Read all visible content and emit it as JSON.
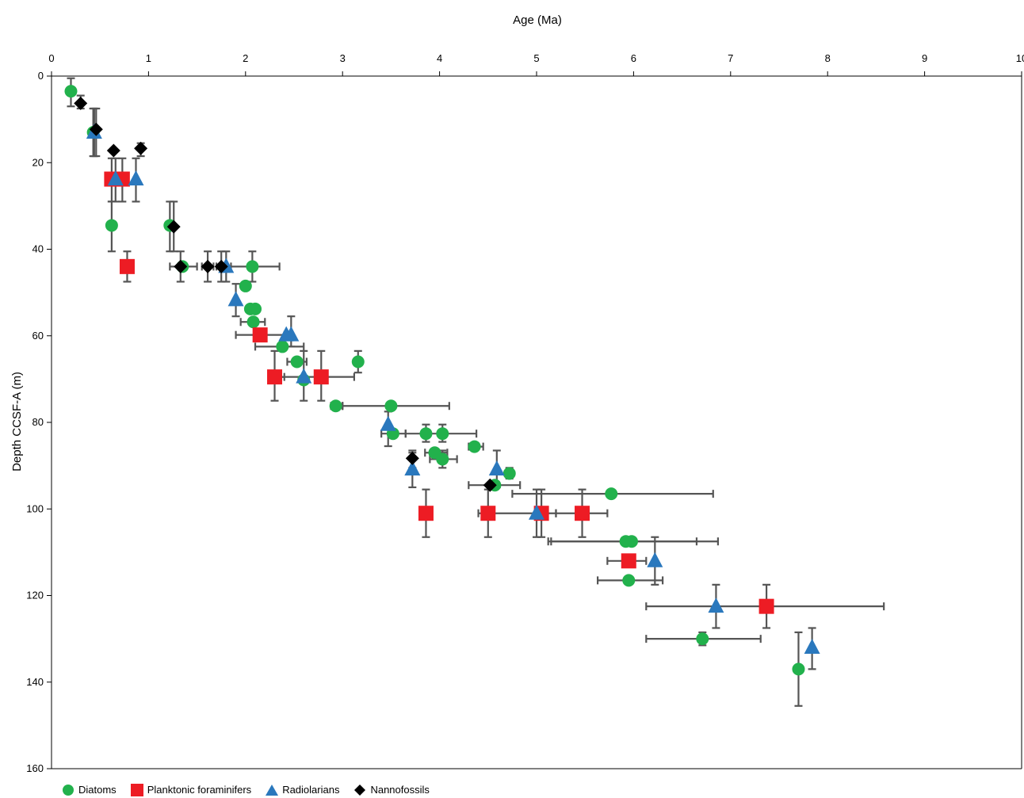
{
  "chart_data": {
    "type": "scatter",
    "xlabel": "Age (Ma)",
    "ylabel": "Depth CCSF-A (m)",
    "xlim": [
      0,
      10
    ],
    "ylim": [
      0,
      160
    ],
    "y_inverted": true,
    "x_axis_position": "top",
    "x_ticks": [
      "0",
      "1",
      "2",
      "3",
      "4",
      "5",
      "6",
      "7",
      "8",
      "9",
      "10"
    ],
    "y_ticks": [
      "0",
      "20",
      "40",
      "60",
      "80",
      "100",
      "120",
      "140",
      "160"
    ],
    "legend_position": "bottom-left",
    "grid": false,
    "series": [
      {
        "name": "Diatoms",
        "marker": "circle",
        "color": "#22b14c",
        "points": [
          {
            "x": 0.2,
            "y": 3.5,
            "ylo": 0.5,
            "yhi": 7.0
          },
          {
            "x": 0.43,
            "y": 13.0,
            "ylo": 7.5,
            "yhi": 18.5
          },
          {
            "x": 0.62,
            "y": 34.5,
            "ylo": 29.0,
            "yhi": 40.5
          },
          {
            "x": 1.22,
            "y": 34.5,
            "ylo": 29.0,
            "yhi": 40.5
          },
          {
            "x": 1.35,
            "y": 44.0,
            "xlo": 1.22,
            "xhi": 1.5
          },
          {
            "x": 2.07,
            "y": 44.0,
            "xlo": 1.85,
            "xhi": 2.35,
            "ylo": 40.5,
            "yhi": 47.5
          },
          {
            "x": 2.0,
            "y": 48.5
          },
          {
            "x": 2.05,
            "y": 53.8
          },
          {
            "x": 2.1,
            "y": 53.8
          },
          {
            "x": 2.08,
            "y": 56.8,
            "xlo": 1.95,
            "xhi": 2.2
          },
          {
            "x": 2.38,
            "y": 62.5,
            "xlo": 2.1,
            "xhi": 2.6
          },
          {
            "x": 2.53,
            "y": 66.0,
            "xlo": 2.43,
            "xhi": 2.63
          },
          {
            "x": 3.16,
            "y": 66.0,
            "ylo": 63.5,
            "yhi": 68.5
          },
          {
            "x": 2.6,
            "y": 70.2
          },
          {
            "x": 2.93,
            "y": 76.2,
            "xlo": 2.88,
            "xhi": 3.0
          },
          {
            "x": 3.5,
            "y": 76.2,
            "xlo": 3.0,
            "xhi": 4.1
          },
          {
            "x": 3.52,
            "y": 82.6,
            "xlo": 3.4,
            "xhi": 3.65
          },
          {
            "x": 3.86,
            "y": 82.6,
            "ylo": 80.5,
            "yhi": 84.5
          },
          {
            "x": 4.03,
            "y": 82.6,
            "xlo": 3.65,
            "xhi": 4.38,
            "ylo": 80.5,
            "yhi": 84.5
          },
          {
            "x": 4.36,
            "y": 85.6,
            "xlo": 4.3,
            "xhi": 4.45
          },
          {
            "x": 3.95,
            "y": 87.0,
            "xlo": 3.85,
            "xhi": 4.08
          },
          {
            "x": 4.03,
            "y": 88.5,
            "xlo": 3.9,
            "xhi": 4.18,
            "ylo": 86.5,
            "yhi": 90.5
          },
          {
            "x": 4.72,
            "y": 91.8,
            "ylo": 90.5,
            "yhi": 93.0
          },
          {
            "x": 4.57,
            "y": 94.5,
            "xlo": 4.3,
            "xhi": 4.83
          },
          {
            "x": 5.77,
            "y": 96.5,
            "xlo": 4.75,
            "xhi": 6.82
          },
          {
            "x": 5.92,
            "y": 107.5,
            "xlo": 5.15,
            "xhi": 6.65
          },
          {
            "x": 5.98,
            "y": 107.5,
            "xlo": 5.12,
            "xhi": 6.87
          },
          {
            "x": 5.95,
            "y": 116.5,
            "xlo": 5.63,
            "xhi": 6.3
          },
          {
            "x": 6.71,
            "y": 130.0,
            "xlo": 6.13,
            "xhi": 7.31,
            "ylo": 128.5,
            "yhi": 131.5
          },
          {
            "x": 7.7,
            "y": 137.0,
            "ylo": 128.5,
            "yhi": 145.5
          }
        ]
      },
      {
        "name": "Planktonic foraminifers",
        "marker": "square",
        "color": "#ed1c24",
        "points": [
          {
            "x": 0.62,
            "y": 23.8,
            "ylo": 19.0,
            "yhi": 29.0
          },
          {
            "x": 0.73,
            "y": 23.8,
            "ylo": 19.0,
            "yhi": 29.0
          },
          {
            "x": 0.78,
            "y": 44.0,
            "ylo": 40.5,
            "yhi": 47.5
          },
          {
            "x": 2.15,
            "y": 59.8,
            "xlo": 1.9,
            "xhi": 2.4
          },
          {
            "x": 2.3,
            "y": 69.5,
            "xlo": 2.3,
            "xhi": 2.4,
            "ylo": 63.5,
            "yhi": 75.0
          },
          {
            "x": 2.78,
            "y": 69.5,
            "xlo": 2.35,
            "xhi": 3.12,
            "ylo": 63.5,
            "yhi": 75.0
          },
          {
            "x": 3.86,
            "y": 101.0,
            "ylo": 95.5,
            "yhi": 106.5
          },
          {
            "x": 4.5,
            "y": 101.0,
            "xlo": 4.4,
            "xhi": 5.0,
            "ylo": 95.5,
            "yhi": 106.5
          },
          {
            "x": 5.05,
            "y": 101.0,
            "xlo": 5.0,
            "xhi": 5.2,
            "ylo": 95.5,
            "yhi": 106.5
          },
          {
            "x": 5.47,
            "y": 101.0,
            "xlo": 5.2,
            "xhi": 5.73,
            "ylo": 95.5,
            "yhi": 106.5
          },
          {
            "x": 5.95,
            "y": 112.0,
            "xlo": 5.73,
            "xhi": 6.13
          },
          {
            "x": 7.37,
            "y": 122.5,
            "xlo": 6.13,
            "xhi": 8.58,
            "ylo": 117.5,
            "yhi": 127.5
          }
        ]
      },
      {
        "name": "Radiolarians",
        "marker": "triangle",
        "color": "#2a78bd",
        "points": [
          {
            "x": 0.44,
            "y": 13.0,
            "ylo": 7.5,
            "yhi": 18.5
          },
          {
            "x": 0.66,
            "y": 23.8,
            "ylo": 19.0,
            "yhi": 29.0
          },
          {
            "x": 0.87,
            "y": 23.8,
            "ylo": 19.0,
            "yhi": 29.0
          },
          {
            "x": 1.8,
            "y": 44.0,
            "ylo": 40.5,
            "yhi": 47.5
          },
          {
            "x": 1.9,
            "y": 51.7,
            "ylo": 48.0,
            "yhi": 55.5
          },
          {
            "x": 2.42,
            "y": 59.8
          },
          {
            "x": 2.47,
            "y": 59.8,
            "ylo": 55.5,
            "yhi": 62.5
          },
          {
            "x": 2.6,
            "y": 69.5,
            "ylo": 63.5,
            "yhi": 75.0
          },
          {
            "x": 3.47,
            "y": 80.5,
            "ylo": 77.5,
            "yhi": 85.5
          },
          {
            "x": 3.72,
            "y": 90.8,
            "ylo": 87.0,
            "yhi": 95.0
          },
          {
            "x": 4.59,
            "y": 90.8,
            "ylo": 86.5,
            "yhi": 95.0
          },
          {
            "x": 5.0,
            "y": 101.0,
            "ylo": 95.5,
            "yhi": 106.5
          },
          {
            "x": 6.22,
            "y": 112.0,
            "ylo": 106.5,
            "yhi": 117.5
          },
          {
            "x": 6.85,
            "y": 122.5,
            "ylo": 117.5,
            "yhi": 127.5
          },
          {
            "x": 7.84,
            "y": 132.0,
            "ylo": 127.5,
            "yhi": 137.0
          }
        ]
      },
      {
        "name": "Nannofossils",
        "marker": "diamond",
        "color": "#000000",
        "points": [
          {
            "x": 0.3,
            "y": 6.3,
            "ylo": 4.5,
            "yhi": 7.5
          },
          {
            "x": 0.46,
            "y": 12.3,
            "ylo": 7.5,
            "yhi": 18.5
          },
          {
            "x": 0.64,
            "y": 17.2
          },
          {
            "x": 0.92,
            "y": 16.7,
            "ylo": 15.5,
            "yhi": 18.5
          },
          {
            "x": 1.26,
            "y": 34.8,
            "ylo": 29.0,
            "yhi": 40.5
          },
          {
            "x": 1.33,
            "y": 44.0,
            "ylo": 40.5,
            "yhi": 47.5
          },
          {
            "x": 1.61,
            "y": 44.0,
            "xlo": 1.55,
            "xhi": 1.67,
            "ylo": 40.5,
            "yhi": 47.5
          },
          {
            "x": 1.75,
            "y": 44.0,
            "xlo": 1.7,
            "xhi": 1.8,
            "ylo": 40.5,
            "yhi": 47.5
          },
          {
            "x": 3.72,
            "y": 88.3,
            "ylo": 86.5,
            "yhi": 90.5
          },
          {
            "x": 4.52,
            "y": 94.5
          }
        ]
      }
    ]
  }
}
